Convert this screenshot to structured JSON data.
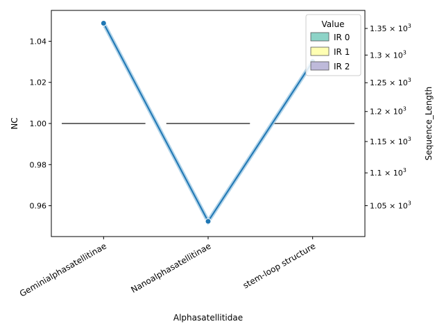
{
  "chart_data": {
    "type": "line",
    "categories": [
      "Geminialphasatellitinae",
      "Nanoalphasatellitinae",
      "stem-loop structure"
    ],
    "xlabel": "Alphasatellitidae",
    "ylabel": "NC",
    "y2label": "Sequence_Length",
    "left_axis": {
      "ylim": [
        0.945,
        1.055
      ],
      "ticks": [
        0.96,
        0.98,
        1.0,
        1.02,
        1.04
      ],
      "tick_labels": [
        "0.96",
        "0.98",
        "1.00",
        "1.02",
        "1.04"
      ]
    },
    "right_axis": {
      "scale": "log",
      "ylim": [
        1005,
        1385
      ],
      "ticks": [
        1050,
        1100,
        1150,
        1200,
        1250,
        1300,
        1350
      ],
      "tick_labels": [
        {
          "mantissa": "1.05",
          "exp": "3"
        },
        {
          "mantissa": "1.1",
          "exp": "3"
        },
        {
          "mantissa": "1.15",
          "exp": "3"
        },
        {
          "mantissa": "1.2",
          "exp": "3"
        },
        {
          "mantissa": "1.25",
          "exp": "3"
        },
        {
          "mantissa": "1.3",
          "exp": "3"
        },
        {
          "mantissa": "1.35",
          "exp": "3"
        }
      ],
      "tick_base": "10",
      "tick_sep": "×"
    },
    "box_series": {
      "axis": "left",
      "values": [
        1.0,
        1.0,
        1.0
      ],
      "color": "#6b6b6b"
    },
    "line_series": {
      "axis": "right",
      "values": [
        1360,
        1027,
        1288
      ],
      "color": "#1f77b4",
      "band_color": "#a6cde6"
    },
    "legend": {
      "title": "Value",
      "placement": "top-right",
      "entries": [
        {
          "label": "IR 0",
          "color": "#8dd3c7"
        },
        {
          "label": "IR 1",
          "color": "#ffffb3"
        },
        {
          "label": "IR 2",
          "color": "#bebada"
        }
      ]
    },
    "grid": false
  }
}
